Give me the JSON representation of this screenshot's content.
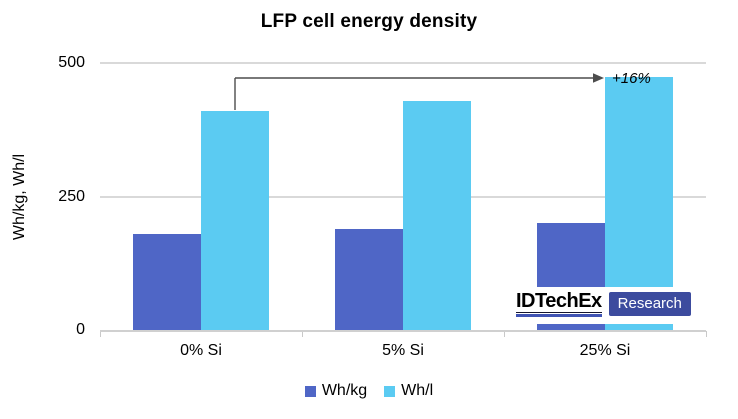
{
  "chart_data": {
    "type": "bar",
    "title": "LFP cell energy density",
    "ylabel": "Wh/kg, Wh/l",
    "xlabel": "",
    "categories": [
      "0% Si",
      "5% Si",
      "25% Si"
    ],
    "series": [
      {
        "name": "Wh/kg",
        "color": "#4f66c6",
        "values": [
          180,
          190,
          200
        ]
      },
      {
        "name": "Wh/l",
        "color": "#5bcbf2",
        "values": [
          410,
          430,
          475
        ]
      }
    ],
    "yticks": [
      0,
      250,
      500
    ],
    "ylim": [
      0,
      543
    ],
    "grid": "horizontal-light",
    "legend_position": "bottom",
    "annotation": {
      "text": "+16%",
      "meaning": "increase of Wh/l from 0% Si to 25% Si",
      "arrow_from_series": "Wh/l",
      "arrow_from_category": "0% Si",
      "arrow_to_category": "25% Si"
    }
  },
  "colors": {
    "gridline": "#d9d9d9",
    "axis_line": "#d0d0d0",
    "arrow": "#4d4d4d",
    "text": "#000000"
  },
  "logo": {
    "brand": "IDTechEx",
    "suffix": "Research",
    "box_color": "#3c4b9e",
    "underline_color": "#4054b4"
  }
}
